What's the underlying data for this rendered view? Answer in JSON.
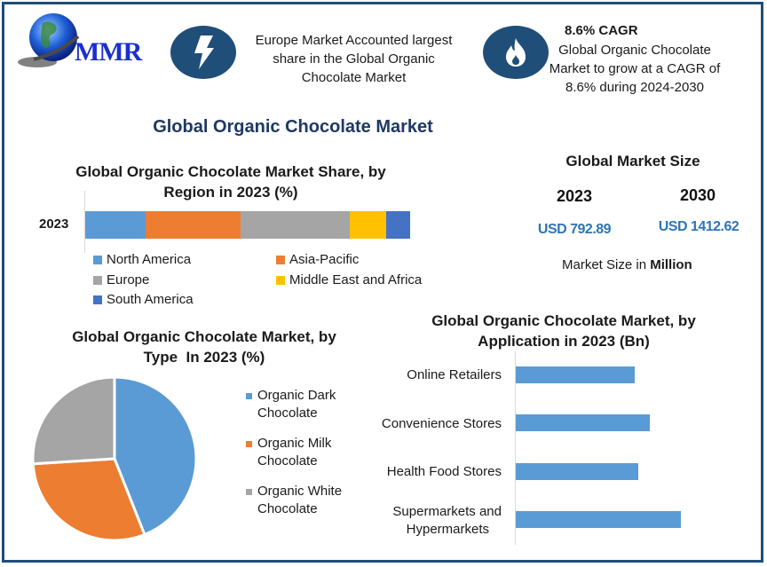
{
  "logo": {
    "text": "MMR",
    "icon": "globe-icon"
  },
  "header": {
    "highlight_1": {
      "icon": "lightning-icon",
      "lines": [
        "Europe Market Accounted largest",
        "share in the Global Organic",
        "Chocolate Market"
      ]
    },
    "highlight_2": {
      "icon": "flame-icon",
      "title": "8.6% CAGR",
      "lines": [
        "Global Organic Chocolate",
        "Market to grow at a CAGR of",
        "8.6% during 2024-2030"
      ]
    }
  },
  "main_title": "Global Organic Chocolate Market",
  "market_size": {
    "title": "Global Market Size",
    "years": [
      {
        "year": "2023",
        "value": "USD 792.89"
      },
      {
        "year": "2030",
        "value": "USD 1412.62"
      }
    ],
    "note_prefix": "Market Size in ",
    "note_unit": "Million"
  },
  "colors": {
    "frame": "#1f4e79",
    "title_navy": "#1f3864",
    "value_blue": "#2e75b6",
    "north_america": "#5b9bd5",
    "asia_pacific": "#ed7d31",
    "europe": "#a5a5a5",
    "mea": "#ffc000",
    "south_america": "#4472c4"
  },
  "chart_data": [
    {
      "type": "bar",
      "orientation": "horizontal-stacked",
      "title": "Global Organic Chocolate Market Share, by Region in 2023 (%)",
      "title_lines": [
        "Global Organic Chocolate Market Share, by",
        "Region in 2023 (%)"
      ],
      "categories": [
        "2023"
      ],
      "series": [
        {
          "name": "North America",
          "values": [
            18.6
          ],
          "color": "#5b9bd5"
        },
        {
          "name": "Asia-Pacific",
          "values": [
            29.2
          ],
          "color": "#ed7d31"
        },
        {
          "name": "Europe",
          "values": [
            33.6
          ],
          "color": "#a5a5a5"
        },
        {
          "name": "Middle East and Africa",
          "values": [
            11.2
          ],
          "color": "#ffc000"
        },
        {
          "name": "South America",
          "values": [
            7.4
          ],
          "color": "#4472c4"
        }
      ],
      "xlabel": "",
      "ylabel": "",
      "grid": false,
      "legend_position": "bottom"
    },
    {
      "type": "pie",
      "title": "Global Organic Chocolate Market, by Type In 2023 (%)",
      "title_lines": [
        "Global Organic Chocolate Market, by",
        "Type  In 2023 (%)"
      ],
      "categories": [
        "Organic Dark Chocolate",
        "Organic Milk Chocolate",
        "Organic White Chocolate"
      ],
      "legend_lines": [
        [
          "Organic Dark",
          "Chocolate"
        ],
        [
          "Organic Milk",
          "Chocolate"
        ],
        [
          "Organic White",
          "Chocolate"
        ]
      ],
      "values": [
        44,
        30,
        26
      ],
      "colors": [
        "#5b9bd5",
        "#ed7d31",
        "#a5a5a5"
      ],
      "legend_position": "right"
    },
    {
      "type": "bar",
      "orientation": "horizontal",
      "title": "Global Organic Chocolate Market, by Application in 2023 (Bn)",
      "title_lines": [
        "Global Organic Chocolate Market, by",
        "Application in 2023 (Bn)"
      ],
      "categories": [
        "Online Retailers",
        "Convenience Stores",
        "Health Food Stores",
        "Supermarkets and Hypermarkets"
      ],
      "label_lines": [
        [
          "Online Retailers"
        ],
        [
          "Convenience Stores"
        ],
        [
          "Health Food Stores"
        ],
        [
          "Supermarkets and",
          "Hypermarkets"
        ]
      ],
      "values": [
        134,
        151,
        138,
        186
      ],
      "value_note": "relative bar lengths (no axis ticks shown)",
      "color": "#5b9bd5",
      "xlabel": "",
      "ylabel": "",
      "grid": false
    }
  ]
}
